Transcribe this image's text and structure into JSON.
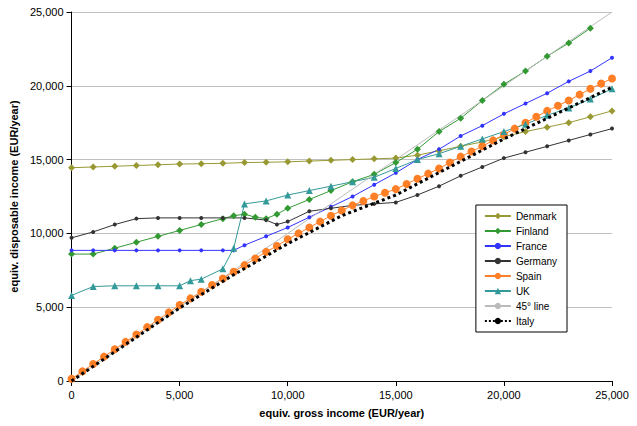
{
  "chart_data": {
    "type": "line",
    "x_label": "equiv. gross income (EUR/year)",
    "y_label": "equiv. disposable income (EUR/year)",
    "xlim": [
      0,
      25000
    ],
    "xticks": [
      0,
      5000,
      10000,
      15000,
      20000,
      25000
    ],
    "ylim": [
      0,
      25000
    ],
    "yticks": [
      0,
      5000,
      10000,
      15000,
      20000,
      25000
    ],
    "grid": true,
    "legend": "right",
    "series": [
      {
        "name": "Denmark",
        "color": "#999933",
        "marker": "diamond",
        "line_style": "solid",
        "x": [
          0,
          1000,
          2000,
          3000,
          4000,
          5000,
          6000,
          7000,
          8000,
          9000,
          10000,
          11000,
          12000,
          13000,
          14000,
          15000,
          16000,
          17000,
          18000,
          19000,
          20000,
          21000,
          22000,
          23000,
          24000,
          25000
        ],
        "values": [
          14450,
          14500,
          14550,
          14600,
          14650,
          14700,
          14720,
          14750,
          14800,
          14820,
          14850,
          14900,
          14950,
          15000,
          15050,
          15100,
          15300,
          15600,
          15900,
          16200,
          16550,
          16900,
          17200,
          17500,
          17900,
          18300
        ]
      },
      {
        "name": "Finland",
        "color": "#339933",
        "marker": "diamond",
        "line_style": "solid",
        "x": [
          0,
          1000,
          2000,
          3000,
          4000,
          5000,
          6000,
          7000,
          7500,
          8000,
          8500,
          9000,
          9500,
          10000,
          11000,
          12000,
          13000,
          14000,
          15000,
          16000,
          17000,
          18000,
          19000,
          20000,
          21000,
          22000,
          23000,
          24000
        ],
        "values": [
          8600,
          8600,
          9000,
          9400,
          9800,
          10200,
          10600,
          11000,
          11200,
          11300,
          11100,
          11000,
          11300,
          11700,
          12300,
          12900,
          13500,
          14000,
          14800,
          15700,
          16900,
          17800,
          19000,
          20100,
          21000,
          22000,
          22900,
          23900
        ]
      },
      {
        "name": "France",
        "color": "#3333FF",
        "marker": "circle",
        "line_style": "solid",
        "x": [
          0,
          1000,
          2000,
          3000,
          4000,
          5000,
          6000,
          7000,
          7500,
          8000,
          9000,
          10000,
          11000,
          12000,
          13000,
          14000,
          15000,
          16000,
          17000,
          18000,
          19000,
          20000,
          21000,
          22000,
          23000,
          24000,
          25000
        ],
        "values": [
          8850,
          8850,
          8850,
          8850,
          8850,
          8850,
          8850,
          8850,
          8850,
          9200,
          9800,
          10400,
          11100,
          11800,
          12500,
          13300,
          14100,
          15000,
          15700,
          16600,
          17300,
          18100,
          18800,
          19500,
          20300,
          21000,
          21900
        ]
      },
      {
        "name": "Germany",
        "color": "#333333",
        "marker": "circle",
        "line_style": "solid",
        "x": [
          0,
          1000,
          2000,
          3000,
          4000,
          5000,
          6000,
          7000,
          8000,
          9000,
          9500,
          10000,
          11000,
          12000,
          13000,
          14000,
          15000,
          16000,
          17000,
          18000,
          19000,
          20000,
          21000,
          22000,
          23000,
          24000,
          25000
        ],
        "values": [
          9700,
          10100,
          10600,
          11000,
          11050,
          11050,
          11050,
          11050,
          11050,
          10900,
          10600,
          10800,
          11500,
          11700,
          11900,
          12000,
          12100,
          12600,
          13200,
          13900,
          14500,
          15100,
          15500,
          15900,
          16300,
          16700,
          17100
        ]
      },
      {
        "name": "Spain",
        "color": "#FF7F27",
        "marker": "circle",
        "line_style": "solid",
        "x": [
          0,
          500,
          1000,
          1500,
          2000,
          2500,
          3000,
          3500,
          4000,
          4500,
          5000,
          5500,
          6000,
          6500,
          7000,
          7500,
          8000,
          8500,
          9000,
          9500,
          10000,
          10500,
          11000,
          11500,
          12000,
          12500,
          13000,
          13500,
          14000,
          14500,
          15000,
          15500,
          16000,
          16500,
          17000,
          17500,
          18000,
          18500,
          19000,
          19500,
          20000,
          20500,
          21000,
          21500,
          22000,
          22500,
          23000,
          23500,
          24000,
          24500,
          25000
        ],
        "values": [
          150,
          650,
          1150,
          1650,
          2150,
          2650,
          3150,
          3650,
          4150,
          4650,
          5150,
          5600,
          6050,
          6500,
          6950,
          7400,
          7850,
          8300,
          8750,
          9150,
          9600,
          10000,
          10400,
          10800,
          11200,
          11550,
          11900,
          12200,
          12500,
          12750,
          13000,
          13350,
          13700,
          14050,
          14400,
          14800,
          15200,
          15550,
          15900,
          16300,
          16700,
          17100,
          17500,
          17900,
          18300,
          18650,
          19000,
          19400,
          19800,
          20150,
          20500
        ]
      },
      {
        "name": "UK",
        "color": "#339999",
        "marker": "triangle",
        "line_style": "solid",
        "x": [
          0,
          1000,
          2000,
          3000,
          4000,
          5000,
          5500,
          6000,
          7000,
          7500,
          8000,
          9000,
          10000,
          11000,
          12000,
          13000,
          14000,
          15000,
          16000,
          17000,
          18000,
          19000,
          20000,
          21000,
          22000,
          23000,
          24000,
          25000
        ],
        "values": [
          5800,
          6400,
          6450,
          6450,
          6450,
          6450,
          6800,
          6900,
          7600,
          9000,
          12000,
          12200,
          12600,
          12900,
          13200,
          13500,
          13800,
          14400,
          15000,
          15400,
          15900,
          16400,
          16900,
          17400,
          18000,
          18500,
          19100,
          19800
        ]
      },
      {
        "name": "45° line",
        "color": "#BBBBBB",
        "marker": "none",
        "line_style": "solid",
        "x": [
          0,
          25000
        ],
        "values": [
          0,
          25000
        ]
      },
      {
        "name": "Italy",
        "color": "#000000",
        "marker": "none",
        "line_style": "dotted",
        "x": [
          0,
          5000,
          7500,
          10000,
          12500,
          15000,
          20000,
          25000
        ],
        "values": [
          0,
          4950,
          7200,
          9300,
          11200,
          12600,
          16400,
          19900
        ]
      }
    ]
  }
}
